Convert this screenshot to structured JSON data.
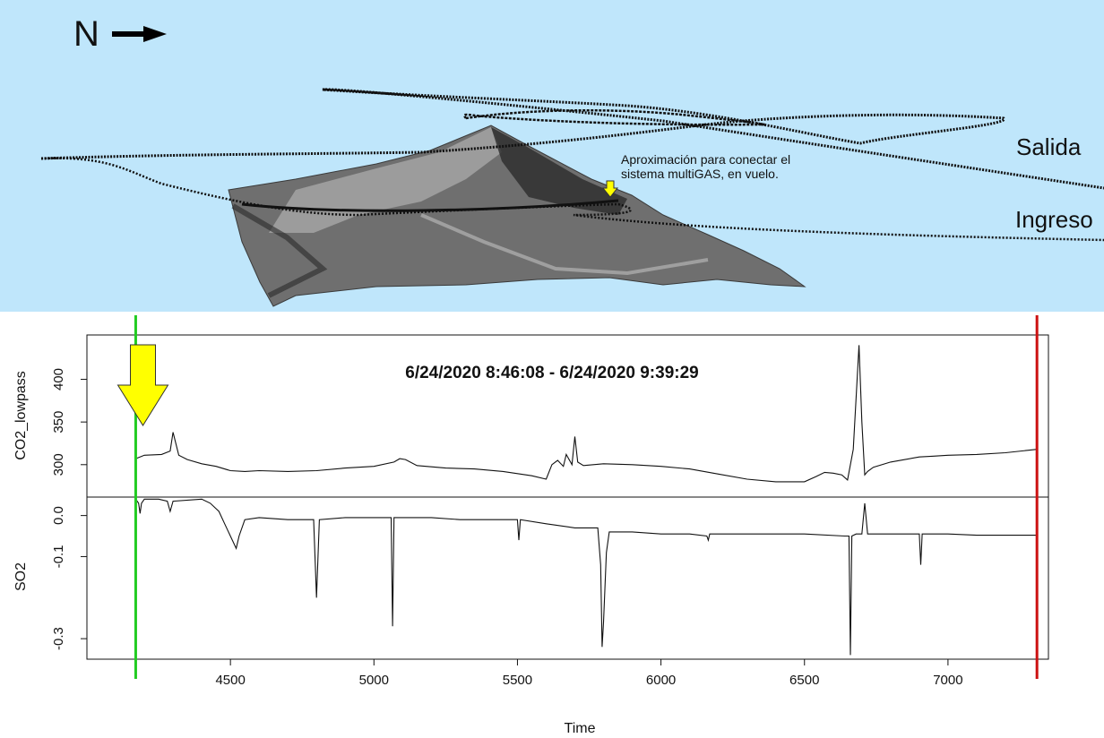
{
  "scene": {
    "north_label": "N",
    "exit_label": "Salida",
    "entry_label": "Ingreso",
    "annotation_line1": "Aproximación para conectar el",
    "annotation_line2": "sistema multiGAS, en vuelo.",
    "colors": {
      "sky": "#bfe6fb",
      "track": "#111111",
      "marker": "#ffff00"
    }
  },
  "chart_data": {
    "type": "line",
    "title": "6/24/2020 8:46:08 - 6/24/2020 9:39:29",
    "xlabel": "Time",
    "xlim": [
      4000,
      7350
    ],
    "xticks": [
      4500,
      5000,
      5500,
      6000,
      6500,
      7000
    ],
    "vlines": [
      {
        "x": 4170,
        "color": "#22cc22"
      },
      {
        "x": 7310,
        "color": "#cc1111"
      }
    ],
    "arrow_x": 4170,
    "panels": [
      {
        "name": "CO2_lowpass",
        "ylabel": "CO2_lowpass",
        "ylim": [
          262,
          452
        ],
        "yticks": [
          300,
          350,
          400
        ],
        "x": [
          4170,
          4200,
          4260,
          4290,
          4300,
          4320,
          4350,
          4400,
          4450,
          4500,
          4550,
          4600,
          4700,
          4800,
          4900,
          5000,
          5070,
          5090,
          5110,
          5150,
          5250,
          5350,
          5450,
          5550,
          5600,
          5620,
          5640,
          5660,
          5670,
          5690,
          5700,
          5710,
          5730,
          5800,
          5900,
          6000,
          6100,
          6200,
          6300,
          6400,
          6500,
          6540,
          6570,
          6600,
          6630,
          6650,
          6670,
          6690,
          6700,
          6710,
          6720,
          6740,
          6800,
          6900,
          6950,
          7000,
          7100,
          7200,
          7310
        ],
        "values": [
          307,
          311,
          312,
          316,
          338,
          311,
          306,
          301,
          298,
          293,
          292,
          293,
          292,
          293,
          296,
          298,
          303,
          307,
          306,
          299,
          296,
          295,
          292,
          287,
          283,
          300,
          305,
          298,
          312,
          300,
          333,
          303,
          299,
          301,
          300,
          298,
          295,
          289,
          283,
          280,
          280,
          286,
          291,
          290,
          288,
          282,
          318,
          440,
          350,
          288,
          292,
          297,
          303,
          309,
          310,
          311,
          312,
          314,
          318
        ]
      },
      {
        "name": "SO2",
        "ylabel": "SO2",
        "ylim": [
          -0.35,
          0.045
        ],
        "yticks": [
          -0.3,
          -0.1,
          0.0
        ],
        "ticklabels": [
          "-0.3",
          "-0.1",
          "0.0"
        ],
        "x": [
          4170,
          4180,
          4185,
          4190,
          4200,
          4250,
          4280,
          4290,
          4300,
          4400,
          4430,
          4460,
          4480,
          4500,
          4520,
          4530,
          4550,
          4600,
          4700,
          4790,
          4800,
          4810,
          4900,
          5000,
          5060,
          5065,
          5070,
          5100,
          5200,
          5300,
          5400,
          5500,
          5505,
          5510,
          5600,
          5700,
          5780,
          5790,
          5795,
          5800,
          5810,
          5820,
          5900,
          6000,
          6100,
          6160,
          6165,
          6170,
          6300,
          6500,
          6640,
          6655,
          6660,
          6665,
          6680,
          6700,
          6710,
          6720,
          6800,
          6900,
          6905,
          6910,
          7000,
          7100,
          7200,
          7310
        ],
        "values": [
          0.04,
          0.03,
          0.005,
          0.03,
          0.04,
          0.04,
          0.035,
          0.01,
          0.035,
          0.04,
          0.03,
          0.01,
          -0.02,
          -0.05,
          -0.08,
          -0.05,
          -0.01,
          -0.005,
          -0.01,
          -0.01,
          -0.2,
          -0.01,
          -0.005,
          -0.005,
          -0.005,
          -0.27,
          -0.005,
          -0.005,
          -0.005,
          -0.01,
          -0.01,
          -0.01,
          -0.06,
          -0.01,
          -0.02,
          -0.03,
          -0.03,
          -0.12,
          -0.32,
          -0.26,
          -0.09,
          -0.04,
          -0.04,
          -0.045,
          -0.045,
          -0.05,
          -0.06,
          -0.045,
          -0.045,
          -0.045,
          -0.05,
          -0.05,
          -0.34,
          -0.05,
          -0.045,
          -0.045,
          0.03,
          -0.045,
          -0.045,
          -0.045,
          -0.12,
          -0.045,
          -0.045,
          -0.048,
          -0.048,
          -0.048
        ]
      }
    ]
  }
}
